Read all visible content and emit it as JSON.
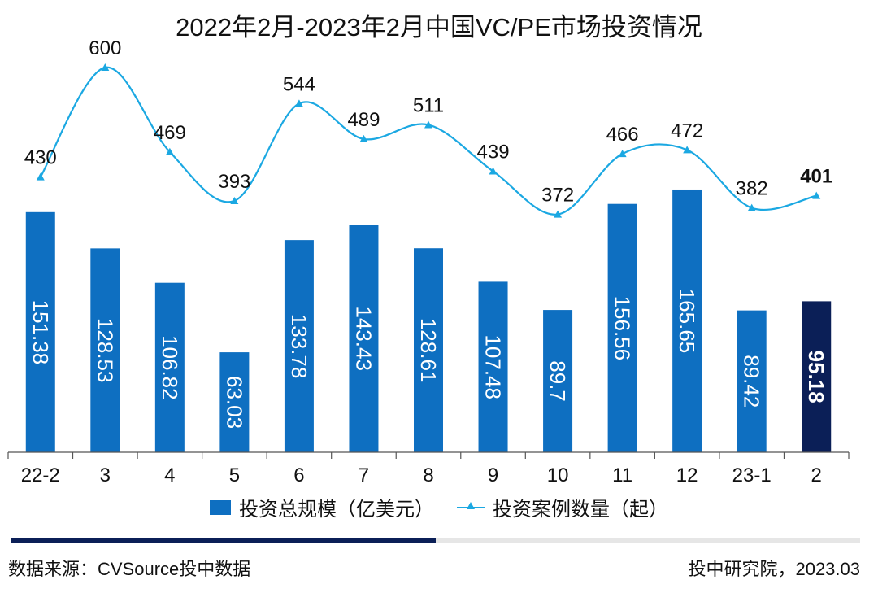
{
  "chart_data": {
    "type": "bar",
    "title": "2022年2月-2023年2月中国VC/PE市场投资情况",
    "categories": [
      "22-2",
      "3",
      "4",
      "5",
      "6",
      "7",
      "8",
      "9",
      "10",
      "11",
      "12",
      "23-1",
      "2"
    ],
    "series": [
      {
        "name": "投资总规模（亿美元）",
        "type": "bar",
        "values": [
          151.38,
          128.53,
          106.82,
          63.03,
          133.78,
          143.43,
          128.61,
          107.48,
          89.7,
          156.56,
          165.65,
          89.42,
          95.18
        ],
        "labels": [
          "151.38",
          "128.53",
          "106.82",
          "63.03",
          "133.78",
          "143.43",
          "128.61",
          "107.48",
          "89.7",
          "156.56",
          "165.65",
          "89.42",
          "95.18"
        ],
        "color": "#0E6FC1",
        "highlight_color": "#0B1F57",
        "highlight_index": 12
      },
      {
        "name": "投资案例数量（起）",
        "type": "line",
        "smooth": true,
        "marker": "triangle",
        "values": [
          430,
          600,
          469,
          393,
          544,
          489,
          511,
          439,
          372,
          466,
          472,
          382,
          401
        ],
        "labels": [
          "430",
          "600",
          "469",
          "393",
          "544",
          "489",
          "511",
          "439",
          "372",
          "466",
          "472",
          "382",
          "401"
        ],
        "color": "#1BA8E2",
        "highlight_index": 12
      }
    ],
    "bar_ylim": [
      0,
      200
    ],
    "line_ylim": [
      300,
      620
    ],
    "grid": false,
    "legend_position": "bottom"
  },
  "footer": {
    "source": "数据来源：CVSource投中数据",
    "credit": "投中研究院，2023.03"
  },
  "colors": {
    "divider_dark": "#0B1F57",
    "divider_light": "#E6E6E6",
    "axis": "#555555"
  }
}
